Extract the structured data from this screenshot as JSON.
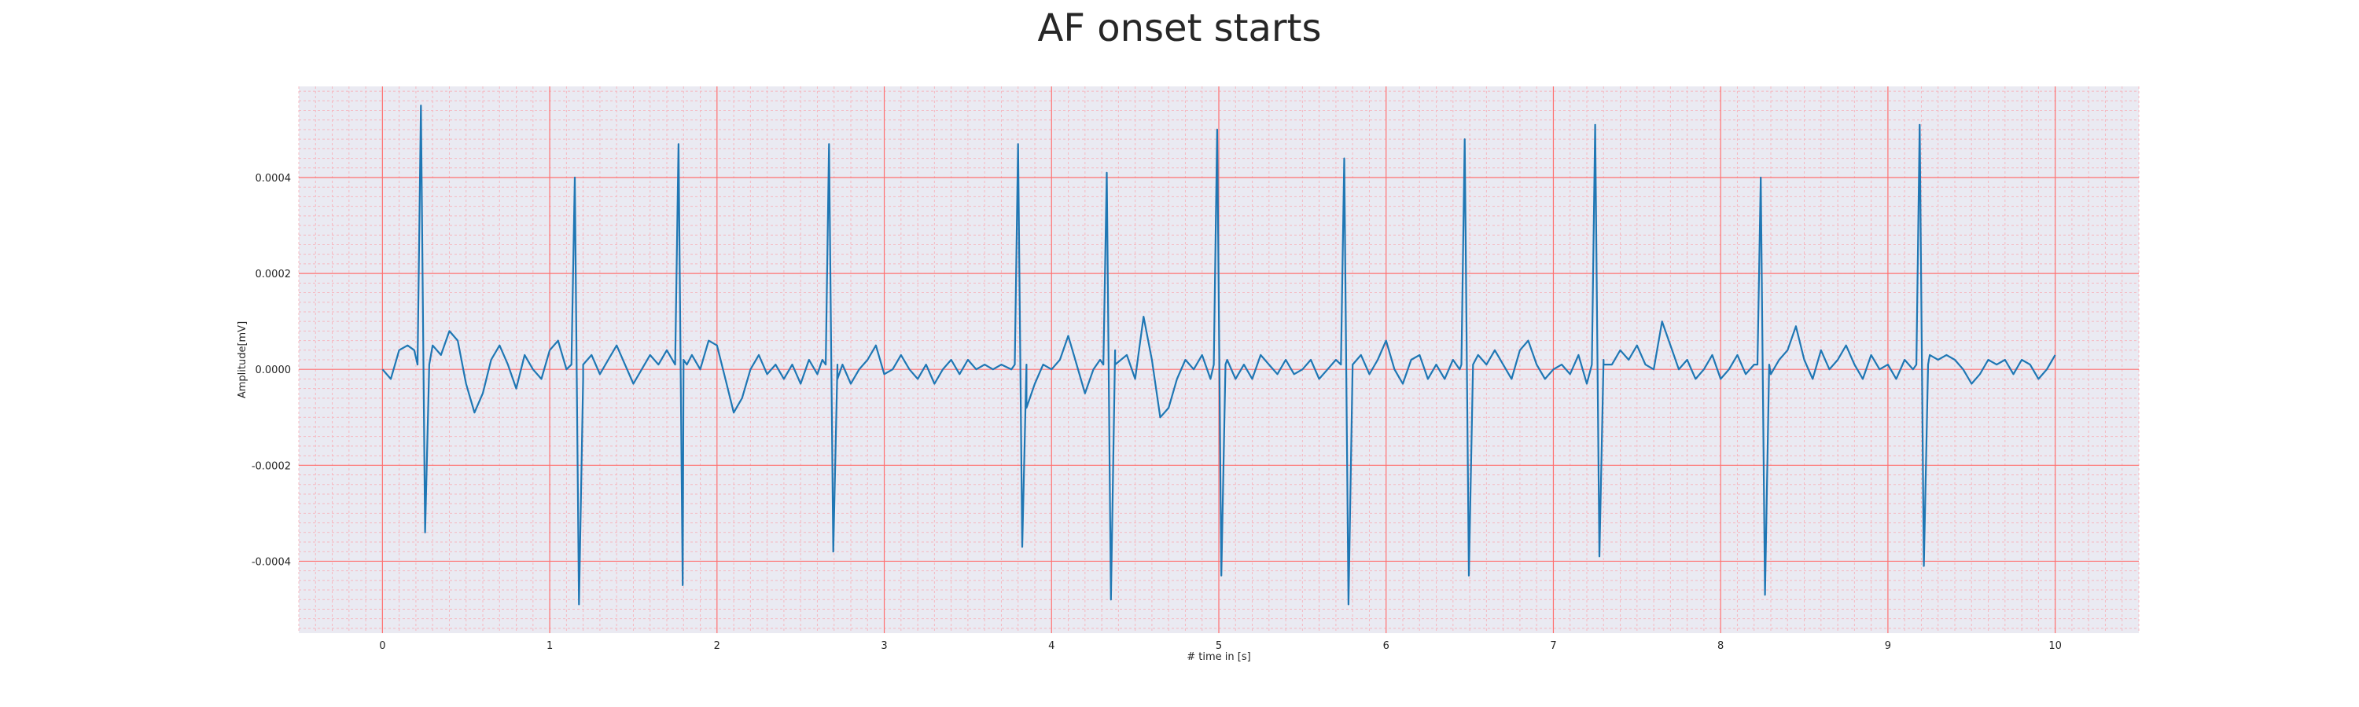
{
  "chart_data": {
    "type": "line",
    "title": "AF onset starts",
    "xlabel": "# time in [s]",
    "ylabel": "Amplitude[mV]",
    "xlim": [
      -0.5,
      10.5
    ],
    "ylim": [
      -0.00055,
      0.00059
    ],
    "xticks": [
      0,
      1,
      2,
      3,
      4,
      5,
      6,
      7,
      8,
      9,
      10
    ],
    "xtick_labels": [
      "0",
      "1",
      "2",
      "3",
      "4",
      "5",
      "6",
      "7",
      "8",
      "9",
      "10"
    ],
    "yticks": [
      0.0004,
      0.0002,
      0.0,
      -0.0002,
      -0.0004
    ],
    "ytick_labels": [
      "0.0004",
      "0.0002",
      "0.0000",
      "-0.0002",
      "-0.0004"
    ],
    "grid": true,
    "minor_grid": true,
    "legend": false,
    "background_color": "#eaeaf2",
    "major_grid_color": "#ff7070",
    "minor_grid_color": "#f5b8c0",
    "series": [
      {
        "color": "#1f77b4",
        "beats": [
          {
            "t": 0.23,
            "r": 0.00055,
            "s": -0.00034
          },
          {
            "t": 1.15,
            "r": 0.0004,
            "s": -0.00049
          },
          {
            "t": 1.77,
            "r": 0.00047,
            "s": -0.00045
          },
          {
            "t": 2.67,
            "r": 0.00047,
            "s": -0.00038
          },
          {
            "t": 3.8,
            "r": 0.00047,
            "s": -0.00037
          },
          {
            "t": 4.33,
            "r": 0.00041,
            "s": -0.00048
          },
          {
            "t": 4.99,
            "r": 0.0005,
            "s": -0.00043
          },
          {
            "t": 5.75,
            "r": 0.00044,
            "s": -0.00049
          },
          {
            "t": 6.47,
            "r": 0.00048,
            "s": -0.00043
          },
          {
            "t": 7.25,
            "r": 0.00051,
            "s": -0.00039
          },
          {
            "t": 8.24,
            "r": 0.0004,
            "s": -0.00047
          },
          {
            "t": 9.19,
            "r": 0.00051,
            "s": -0.00041
          }
        ],
        "baseline": [
          [
            0.0,
            0.0
          ],
          [
            0.05,
            -2e-05
          ],
          [
            0.1,
            4e-05
          ],
          [
            0.15,
            5e-05
          ],
          [
            0.19,
            4e-05
          ],
          [
            0.3,
            5e-05
          ],
          [
            0.35,
            3e-05
          ],
          [
            0.4,
            8e-05
          ],
          [
            0.45,
            6e-05
          ],
          [
            0.5,
            -3e-05
          ],
          [
            0.55,
            -9e-05
          ],
          [
            0.6,
            -5e-05
          ],
          [
            0.65,
            2e-05
          ],
          [
            0.7,
            5e-05
          ],
          [
            0.75,
            1e-05
          ],
          [
            0.8,
            -4e-05
          ],
          [
            0.85,
            3e-05
          ],
          [
            0.9,
            0.0
          ],
          [
            0.95,
            -2e-05
          ],
          [
            1.0,
            4e-05
          ],
          [
            1.05,
            6e-05
          ],
          [
            1.1,
            0.0
          ],
          [
            1.2,
            -2e-05
          ],
          [
            1.25,
            3e-05
          ],
          [
            1.3,
            -1e-05
          ],
          [
            1.35,
            2e-05
          ],
          [
            1.4,
            5e-05
          ],
          [
            1.45,
            1e-05
          ],
          [
            1.5,
            -3e-05
          ],
          [
            1.55,
            0.0
          ],
          [
            1.6,
            3e-05
          ],
          [
            1.65,
            1e-05
          ],
          [
            1.7,
            4e-05
          ],
          [
            1.8,
            2e-05
          ],
          [
            1.85,
            3e-05
          ],
          [
            1.9,
            0.0
          ],
          [
            1.95,
            6e-05
          ],
          [
            2.0,
            5e-05
          ],
          [
            2.05,
            -2e-05
          ],
          [
            2.1,
            -9e-05
          ],
          [
            2.15,
            -6e-05
          ],
          [
            2.2,
            0.0
          ],
          [
            2.25,
            3e-05
          ],
          [
            2.3,
            -1e-05
          ],
          [
            2.35,
            1e-05
          ],
          [
            2.4,
            -2e-05
          ],
          [
            2.45,
            1e-05
          ],
          [
            2.5,
            -3e-05
          ],
          [
            2.55,
            2e-05
          ],
          [
            2.6,
            -1e-05
          ],
          [
            2.63,
            2e-05
          ],
          [
            2.72,
            -2e-05
          ],
          [
            2.75,
            1e-05
          ],
          [
            2.8,
            -3e-05
          ],
          [
            2.85,
            0.0
          ],
          [
            2.9,
            2e-05
          ],
          [
            2.95,
            5e-05
          ],
          [
            3.0,
            -1e-05
          ],
          [
            3.05,
            0.0
          ],
          [
            3.1,
            3e-05
          ],
          [
            3.15,
            0.0
          ],
          [
            3.2,
            -2e-05
          ],
          [
            3.25,
            1e-05
          ],
          [
            3.3,
            -3e-05
          ],
          [
            3.35,
            0.0
          ],
          [
            3.4,
            2e-05
          ],
          [
            3.45,
            -1e-05
          ],
          [
            3.5,
            2e-05
          ],
          [
            3.55,
            0.0
          ],
          [
            3.6,
            1e-05
          ],
          [
            3.65,
            0.0
          ],
          [
            3.7,
            1e-05
          ],
          [
            3.76,
            0.0
          ],
          [
            3.85,
            -8e-05
          ],
          [
            3.9,
            -3e-05
          ],
          [
            3.95,
            1e-05
          ],
          [
            4.0,
            0.0
          ],
          [
            4.05,
            2e-05
          ],
          [
            4.1,
            7e-05
          ],
          [
            4.15,
            1e-05
          ],
          [
            4.2,
            -5e-05
          ],
          [
            4.25,
            0.0
          ],
          [
            4.29,
            2e-05
          ],
          [
            4.38,
            4e-05
          ],
          [
            4.45,
            3e-05
          ],
          [
            4.5,
            -2e-05
          ],
          [
            4.55,
            0.00011
          ],
          [
            4.6,
            2e-05
          ],
          [
            4.65,
            -0.0001
          ],
          [
            4.7,
            -8e-05
          ],
          [
            4.75,
            -2e-05
          ],
          [
            4.8,
            2e-05
          ],
          [
            4.85,
            0.0
          ],
          [
            4.9,
            3e-05
          ],
          [
            4.95,
            -2e-05
          ],
          [
            5.05,
            2e-05
          ],
          [
            5.1,
            -2e-05
          ],
          [
            5.15,
            1e-05
          ],
          [
            5.2,
            -2e-05
          ],
          [
            5.25,
            3e-05
          ],
          [
            5.3,
            1e-05
          ],
          [
            5.35,
            -1e-05
          ],
          [
            5.4,
            2e-05
          ],
          [
            5.45,
            -1e-05
          ],
          [
            5.5,
            0.0
          ],
          [
            5.55,
            2e-05
          ],
          [
            5.6,
            -2e-05
          ],
          [
            5.65,
            0.0
          ],
          [
            5.7,
            2e-05
          ],
          [
            5.8,
            1e-05
          ],
          [
            5.85,
            3e-05
          ],
          [
            5.9,
            -1e-05
          ],
          [
            5.95,
            2e-05
          ],
          [
            6.0,
            6e-05
          ],
          [
            6.05,
            0.0
          ],
          [
            6.1,
            -3e-05
          ],
          [
            6.15,
            2e-05
          ],
          [
            6.2,
            3e-05
          ],
          [
            6.25,
            -2e-05
          ],
          [
            6.3,
            1e-05
          ],
          [
            6.35,
            -2e-05
          ],
          [
            6.4,
            2e-05
          ],
          [
            6.44,
            0.0
          ],
          [
            6.52,
            1e-05
          ],
          [
            6.55,
            3e-05
          ],
          [
            6.6,
            1e-05
          ],
          [
            6.65,
            4e-05
          ],
          [
            6.7,
            1e-05
          ],
          [
            6.75,
            -2e-05
          ],
          [
            6.8,
            4e-05
          ],
          [
            6.85,
            6e-05
          ],
          [
            6.9,
            1e-05
          ],
          [
            6.95,
            -2e-05
          ],
          [
            7.0,
            0.0
          ],
          [
            7.05,
            1e-05
          ],
          [
            7.1,
            -1e-05
          ],
          [
            7.15,
            3e-05
          ],
          [
            7.2,
            -3e-05
          ],
          [
            7.3,
            2e-05
          ],
          [
            7.35,
            1e-05
          ],
          [
            7.4,
            4e-05
          ],
          [
            7.45,
            2e-05
          ],
          [
            7.5,
            5e-05
          ],
          [
            7.55,
            1e-05
          ],
          [
            7.6,
            0.0
          ],
          [
            7.65,
            0.0001
          ],
          [
            7.7,
            5e-05
          ],
          [
            7.75,
            0.0
          ],
          [
            7.8,
            2e-05
          ],
          [
            7.85,
            -2e-05
          ],
          [
            7.9,
            0.0
          ],
          [
            7.95,
            3e-05
          ],
          [
            8.0,
            -2e-05
          ],
          [
            8.05,
            0.0
          ],
          [
            8.1,
            3e-05
          ],
          [
            8.15,
            -1e-05
          ],
          [
            8.2,
            1e-05
          ],
          [
            8.3,
            -1e-05
          ],
          [
            8.35,
            2e-05
          ],
          [
            8.4,
            4e-05
          ],
          [
            8.45,
            9e-05
          ],
          [
            8.5,
            2e-05
          ],
          [
            8.55,
            -2e-05
          ],
          [
            8.6,
            4e-05
          ],
          [
            8.65,
            0.0
          ],
          [
            8.7,
            2e-05
          ],
          [
            8.75,
            5e-05
          ],
          [
            8.8,
            1e-05
          ],
          [
            8.85,
            -2e-05
          ],
          [
            8.9,
            3e-05
          ],
          [
            8.95,
            0.0
          ],
          [
            9.0,
            1e-05
          ],
          [
            9.05,
            -2e-05
          ],
          [
            9.1,
            2e-05
          ],
          [
            9.15,
            0.0
          ],
          [
            9.25,
            3e-05
          ],
          [
            9.3,
            2e-05
          ],
          [
            9.35,
            3e-05
          ],
          [
            9.4,
            2e-05
          ],
          [
            9.45,
            0.0
          ],
          [
            9.5,
            -3e-05
          ],
          [
            9.55,
            -1e-05
          ],
          [
            9.6,
            2e-05
          ],
          [
            9.65,
            1e-05
          ],
          [
            9.7,
            2e-05
          ],
          [
            9.75,
            -1e-05
          ],
          [
            9.8,
            2e-05
          ],
          [
            9.85,
            1e-05
          ],
          [
            9.9,
            -2e-05
          ],
          [
            9.95,
            0.0
          ],
          [
            10.0,
            3e-05
          ]
        ]
      }
    ]
  }
}
